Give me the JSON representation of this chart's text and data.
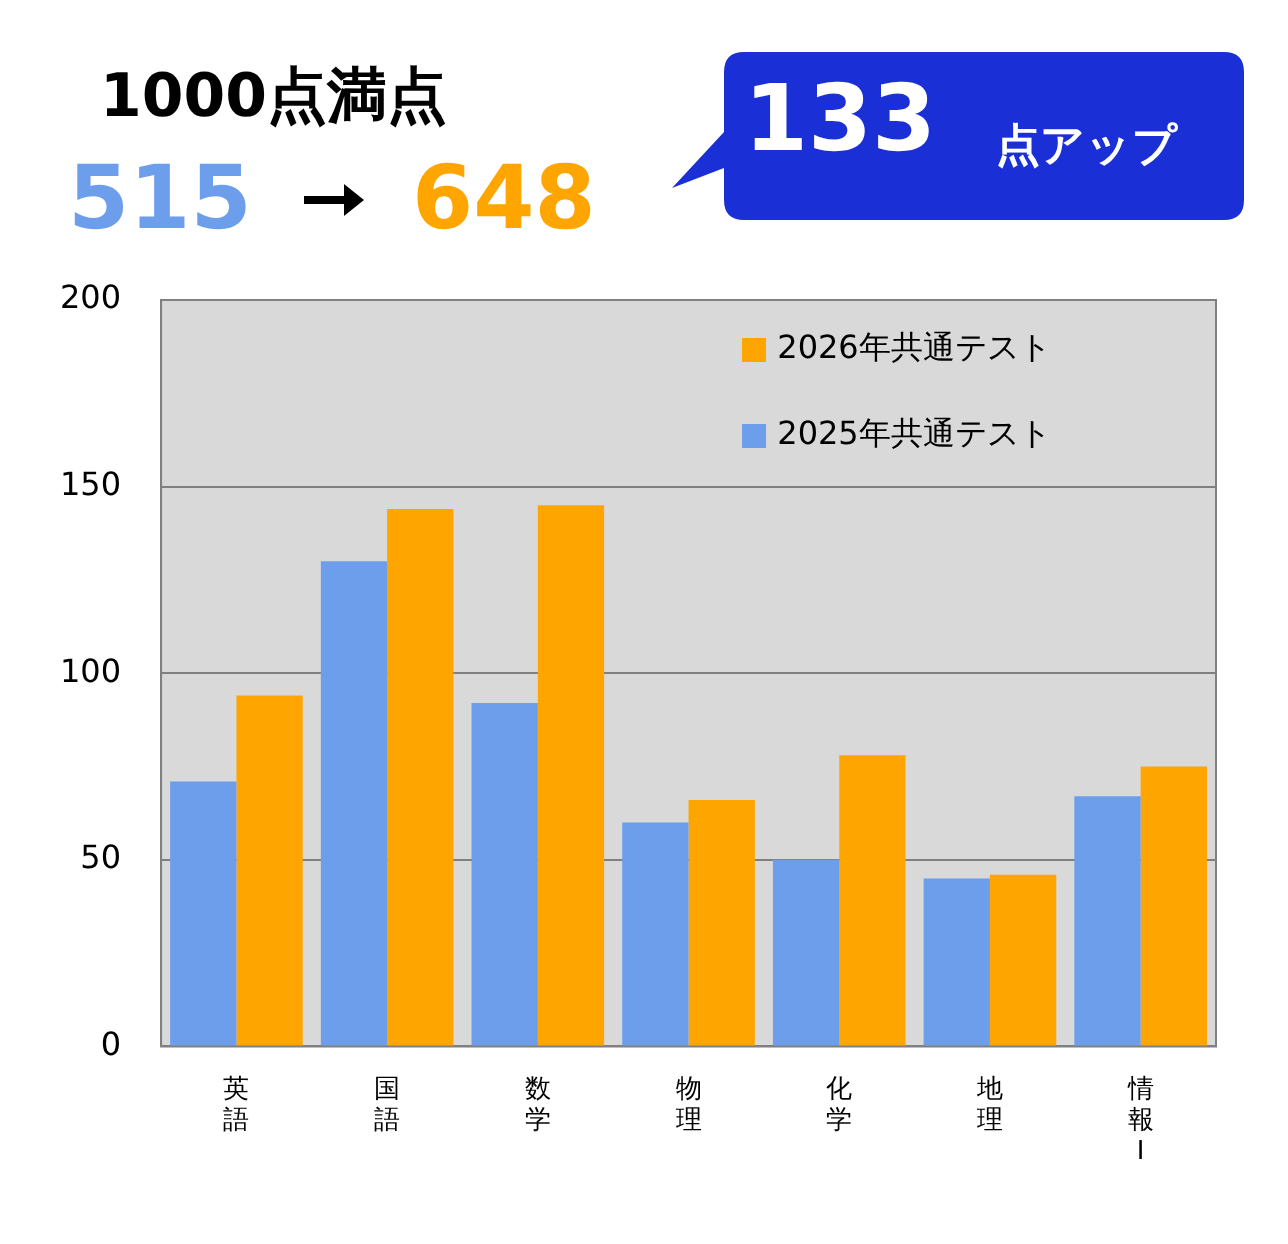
{
  "chart_data": {
    "type": "bar",
    "title": "1000点満点",
    "annotations": [
      "515",
      "648",
      "133",
      "点アップ"
    ],
    "categories": [
      "英語",
      "国語",
      "数学",
      "物理",
      "化学",
      "地理",
      "情報I"
    ],
    "series": [
      {
        "name": "2025年共通テスト",
        "color": "#6d9eeb",
        "values": [
          71,
          130,
          92,
          60,
          50,
          45,
          67
        ]
      },
      {
        "name": "2026年共通テスト",
        "color": "#ffa500",
        "values": [
          94,
          144,
          145,
          66,
          78,
          46,
          75
        ]
      }
    ],
    "ylim": [
      0,
      200
    ],
    "yticks": [
      0,
      50,
      100,
      150,
      200
    ],
    "grid": "y",
    "legend": "top right"
  }
}
